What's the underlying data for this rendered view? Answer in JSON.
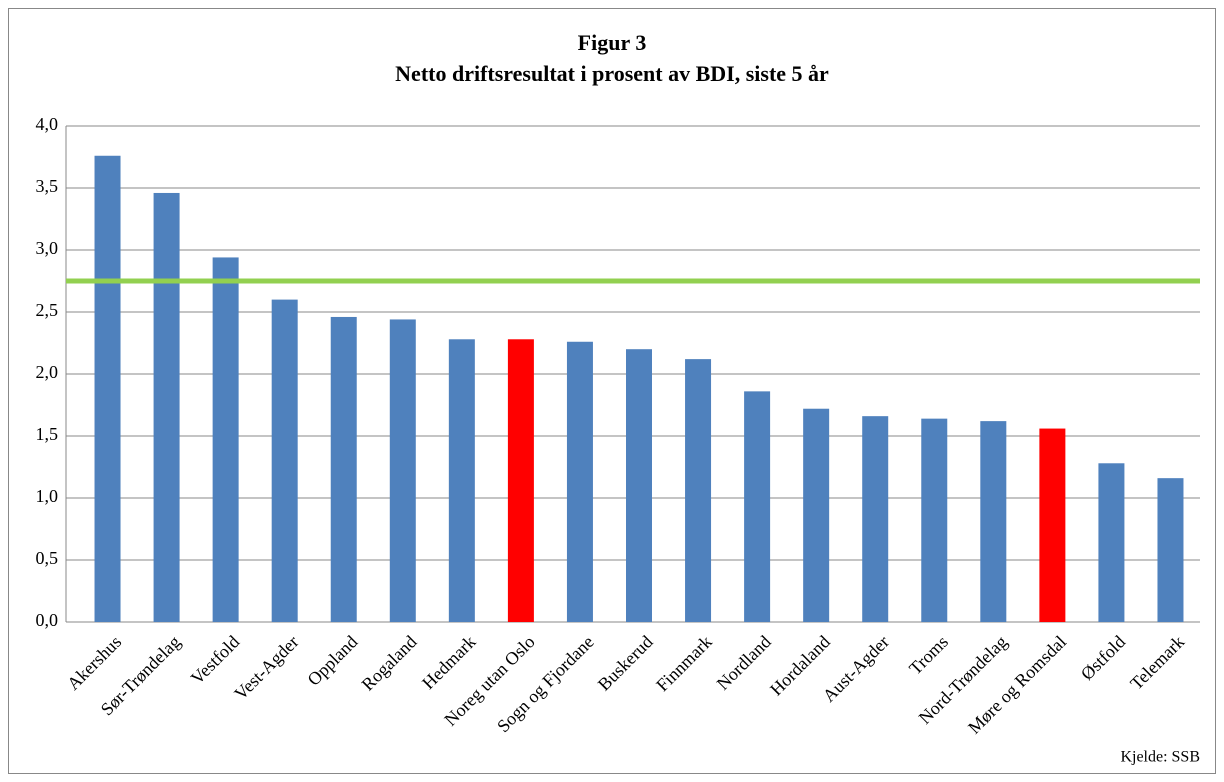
{
  "chart_data": {
    "type": "bar",
    "title": "Figur 3",
    "subtitle": "Netto driftsresultat i prosent av BDI, siste 5 år",
    "categories": [
      "Akershus",
      "Sør-Trøndelag",
      "Vestfold",
      "Vest-Agder",
      "Oppland",
      "Rogaland",
      "Hedmark",
      "Noreg utan Oslo",
      "Sogn og Fjordane",
      "Buskerud",
      "Finnmark",
      "Nordland",
      "Hordaland",
      "Aust-Agder",
      "Troms",
      "Nord-Trøndelag",
      "Møre og Romsdal",
      "Østfold",
      "Telemark"
    ],
    "values": [
      3.76,
      3.46,
      2.94,
      2.6,
      2.46,
      2.44,
      2.28,
      2.28,
      2.26,
      2.2,
      2.12,
      1.86,
      1.72,
      1.66,
      1.64,
      1.62,
      1.56,
      1.28,
      1.16
    ],
    "colors": [
      "#4f81bd",
      "#4f81bd",
      "#4f81bd",
      "#4f81bd",
      "#4f81bd",
      "#4f81bd",
      "#4f81bd",
      "#ff0000",
      "#4f81bd",
      "#4f81bd",
      "#4f81bd",
      "#4f81bd",
      "#4f81bd",
      "#4f81bd",
      "#4f81bd",
      "#4f81bd",
      "#ff0000",
      "#4f81bd",
      "#4f81bd"
    ],
    "reference_line": 2.75,
    "reference_color": "#92d050",
    "ylim": [
      0,
      4
    ],
    "yticks": [
      {
        "value": 0,
        "label": "0,0"
      },
      {
        "value": 0.5,
        "label": "0,5"
      },
      {
        "value": 1,
        "label": "1,0"
      },
      {
        "value": 1.5,
        "label": "1,5"
      },
      {
        "value": 2,
        "label": "2,0"
      },
      {
        "value": 2.5,
        "label": "2,5"
      },
      {
        "value": 3,
        "label": "3,0"
      },
      {
        "value": 3.5,
        "label": "3,5"
      },
      {
        "value": 4,
        "label": "4,0"
      }
    ],
    "grid": true,
    "annotation": "Kjelde: SSB"
  }
}
